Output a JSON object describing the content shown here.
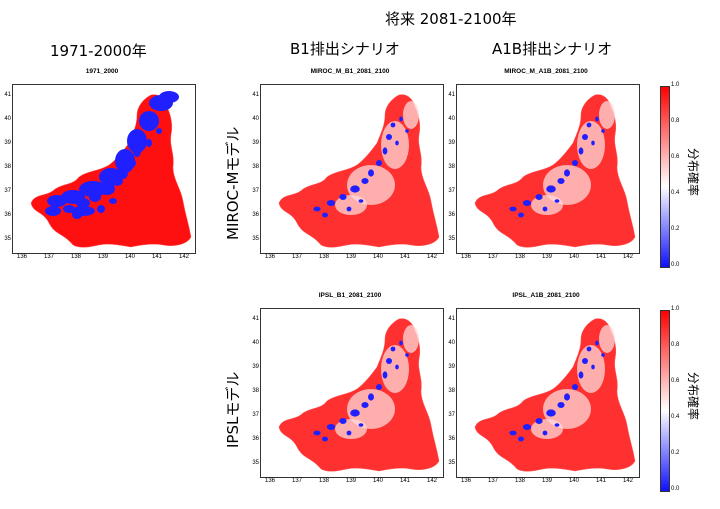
{
  "top_title": "将来 2081-2100年",
  "col_baseline": "1971-2000年",
  "col_b1": "B1排出シナリオ",
  "col_a1b": "A1B排出シナリオ",
  "row_miroc": "MIROC-Mモデル",
  "row_ipsl": "IPSLモデル",
  "panels": {
    "baseline": "1971_2000",
    "miroc_b1": "MIROC_M_B1_2081_2100",
    "miroc_a1b": "MIROC_M_A1B_2081_2100",
    "ipsl_b1": "IPSL_B1_2081_2100",
    "ipsl_a1b": "IPSL_A1B_2081_2100"
  },
  "colorbar": {
    "label": "分布確率",
    "ticks": [
      "0.0",
      "0.2",
      "0.4",
      "0.6",
      "0.8",
      "1.0"
    ],
    "colors": {
      "low": "#1010ff",
      "mid": "#ffffff",
      "high": "#ff0000"
    }
  },
  "lat_ticks": [
    "41",
    "40",
    "39",
    "38",
    "37",
    "36",
    "35"
  ],
  "lon_ticks": [
    "136",
    "137",
    "138",
    "139",
    "140",
    "141",
    "142"
  ]
}
